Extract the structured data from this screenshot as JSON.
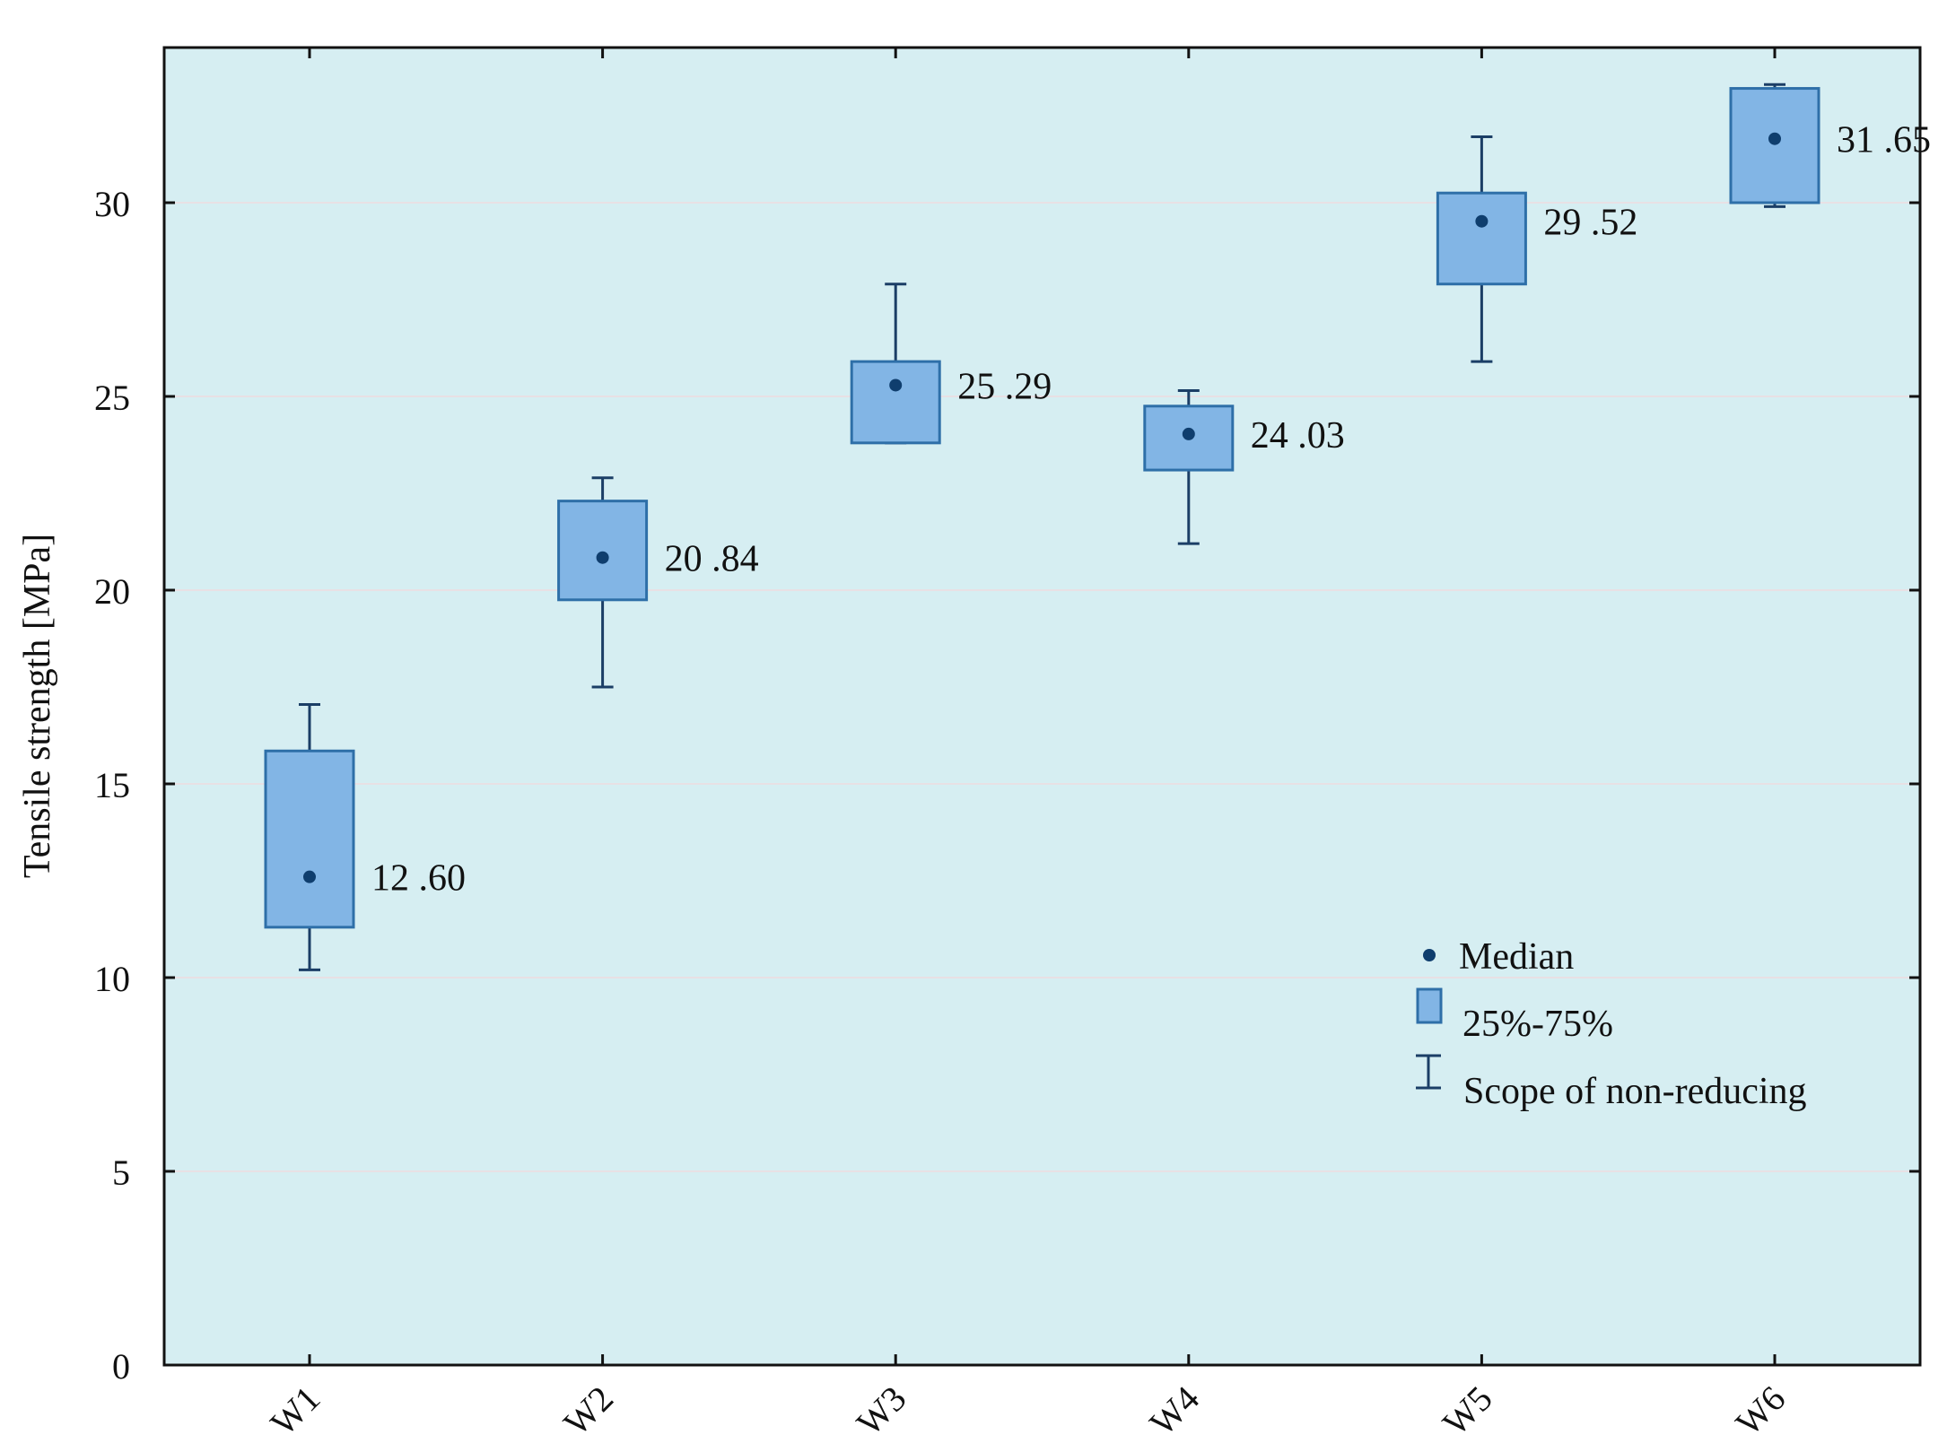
{
  "chart_data": {
    "type": "box",
    "title": "",
    "xlabel": "",
    "ylabel": "Tensile strength [MPa]",
    "ylim": [
      0,
      34
    ],
    "yticks": [
      0,
      5,
      10,
      15,
      20,
      25,
      30
    ],
    "grid": "horizontal",
    "categories": [
      "W1",
      "W2",
      "W3",
      "W4",
      "W5",
      "W6"
    ],
    "series": [
      {
        "name": "W1",
        "median": 12.6,
        "q1": 11.3,
        "q3": 15.85,
        "min": 10.2,
        "max": 17.05,
        "label": "12 .60"
      },
      {
        "name": "W2",
        "median": 20.84,
        "q1": 19.75,
        "q3": 22.3,
        "min": 17.5,
        "max": 22.9,
        "label": "20 .84"
      },
      {
        "name": "W3",
        "median": 25.29,
        "q1": 23.8,
        "q3": 25.9,
        "min": 23.8,
        "max": 27.9,
        "label": "25 .29"
      },
      {
        "name": "W4",
        "median": 24.03,
        "q1": 23.1,
        "q3": 24.75,
        "min": 21.2,
        "max": 25.15,
        "label": "24 .03"
      },
      {
        "name": "W5",
        "median": 29.52,
        "q1": 27.9,
        "q3": 30.25,
        "min": 25.9,
        "max": 31.7,
        "label": "29 .52"
      },
      {
        "name": "W6",
        "median": 31.65,
        "q1": 30.0,
        "q3": 32.95,
        "min": 29.9,
        "max": 33.05,
        "label": "31 .65"
      }
    ],
    "legend": {
      "placement": "inside-right",
      "items": [
        "Median",
        "25%-75%",
        "Scope of non-reducing"
      ]
    },
    "colors": {
      "plot_bg": "#d6eef2",
      "box_fill": "#82b5e5",
      "box_stroke": "#2e6fa8",
      "whisker": "#1b3e66",
      "median": "#0f3e6e",
      "grid": "#e8e0e4",
      "axis": "#111111"
    }
  }
}
